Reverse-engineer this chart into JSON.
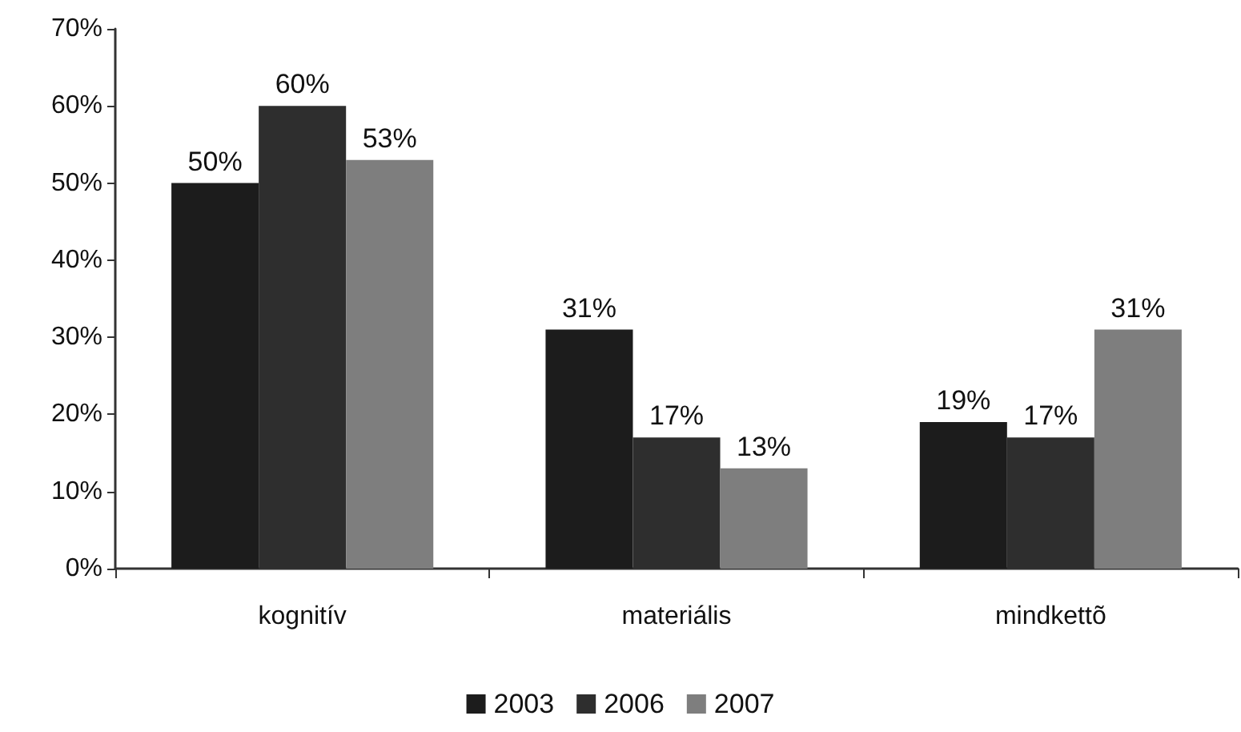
{
  "chart_data": {
    "type": "bar",
    "categories": [
      "kognitív",
      "materiális",
      "mindkettõ"
    ],
    "series": [
      {
        "name": "2003",
        "color": "#1c1c1c",
        "values": [
          50,
          31,
          19
        ],
        "value_labels": [
          "50%",
          "31%",
          "19%"
        ]
      },
      {
        "name": "2006",
        "color": "#2e2e2e",
        "values": [
          60,
          17,
          17
        ],
        "value_labels": [
          "60%",
          "17%",
          "17%"
        ]
      },
      {
        "name": "2007",
        "color": "#7e7e7e",
        "values": [
          53,
          13,
          31
        ],
        "value_labels": [
          "53%",
          "13%",
          "31%"
        ]
      }
    ],
    "ylim": [
      0,
      70
    ],
    "yticks": [
      {
        "value": 0,
        "label": "0%"
      },
      {
        "value": 10,
        "label": "10%"
      },
      {
        "value": 20,
        "label": "20%"
      },
      {
        "value": 30,
        "label": "30%"
      },
      {
        "value": 40,
        "label": "40%"
      },
      {
        "value": 50,
        "label": "50%"
      },
      {
        "value": 60,
        "label": "60%"
      },
      {
        "value": 70,
        "label": "70%"
      }
    ],
    "grid": false,
    "legend": "bottom"
  }
}
